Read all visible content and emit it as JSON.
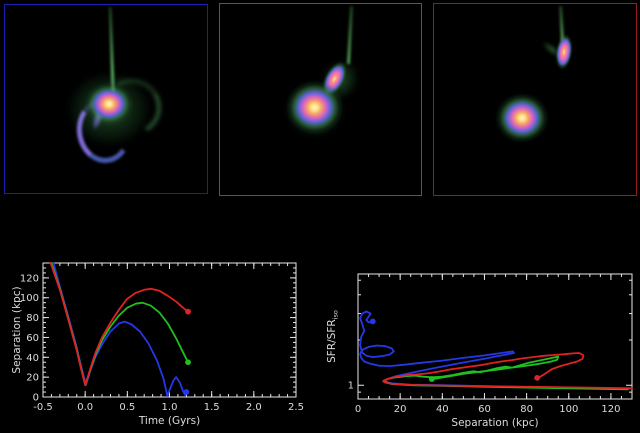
{
  "figure": {
    "background": "#000000",
    "description": "Galaxy merger simulation: three snapshot panels and two plots"
  },
  "snapshots": [
    {
      "border_color": "#1d1db0",
      "description": "merged galaxy with tidal tail and spiral arm"
    },
    {
      "border_color": "#257a25",
      "description": "galaxy pair, close companion with tidal tail"
    },
    {
      "border_color": "#9b1b1b",
      "description": "galaxy pair, distant companion with tidal tail"
    }
  ],
  "colors": {
    "series_red": "#e02222",
    "series_green": "#1fbf1f",
    "series_blue": "#2438e6",
    "axis": "#e8e8e8",
    "tick_text": "#dcdcdc",
    "galaxy_core": "#fff0b8",
    "galaxy_inner_ring": "#f2a068",
    "galaxy_pink_ring": "#de64bc",
    "galaxy_blue_ring": "#5866d8",
    "galaxy_halo": "#2f8a42",
    "tidal_tail": "#57b468"
  },
  "chart_data": [
    {
      "type": "line",
      "title": "",
      "xlabel": "Time (Gyrs)",
      "ylabel": "Separation (kpc)",
      "ylabel_sub": "",
      "legend": "none",
      "grid": false,
      "axes": {
        "xlim": [
          -0.5,
          2.5
        ],
        "ylim": [
          0,
          135
        ],
        "ylog": false,
        "xticks": {
          "values": [
            -0.5,
            0.0,
            0.5,
            1.0,
            1.5,
            2.0,
            2.5
          ],
          "labels": [
            "-0.5",
            "0.0",
            "0.5",
            "1.0",
            "1.5",
            "2.0",
            "2.5"
          ]
        },
        "yticks": {
          "values": [
            0,
            20,
            40,
            60,
            80,
            100,
            120
          ],
          "labels": [
            "0",
            "20",
            "40",
            "60",
            "80",
            "100",
            "120"
          ]
        },
        "xminor_step": 0.1,
        "yminor_step": 5
      },
      "series": [
        {
          "name": "blue-orbit",
          "color": "#2438e6",
          "end_dot": true,
          "points": [
            [
              -0.375,
              135
            ],
            [
              -0.3,
              111
            ],
            [
              -0.2,
              81
            ],
            [
              -0.1,
              50
            ],
            [
              -0.05,
              32
            ],
            [
              0.01,
              12
            ],
            [
              0.06,
              26
            ],
            [
              0.12,
              40
            ],
            [
              0.2,
              53
            ],
            [
              0.3,
              66
            ],
            [
              0.4,
              74
            ],
            [
              0.47,
              76
            ],
            [
              0.55,
              73
            ],
            [
              0.65,
              66
            ],
            [
              0.75,
              54
            ],
            [
              0.85,
              37
            ],
            [
              0.93,
              18
            ],
            [
              0.975,
              1
            ],
            [
              1.01,
              9
            ],
            [
              1.05,
              17
            ],
            [
              1.08,
              20
            ],
            [
              1.12,
              15
            ],
            [
              1.16,
              6
            ],
            [
              1.185,
              2
            ],
            [
              1.2,
              5
            ]
          ]
        },
        {
          "name": "green-orbit",
          "color": "#1fbf1f",
          "end_dot": true,
          "points": [
            [
              -0.4,
              135
            ],
            [
              -0.3,
              109
            ],
            [
              -0.2,
              79
            ],
            [
              -0.1,
              48
            ],
            [
              -0.05,
              30
            ],
            [
              0.0,
              12
            ],
            [
              0.06,
              27
            ],
            [
              0.12,
              42
            ],
            [
              0.2,
              57
            ],
            [
              0.3,
              71
            ],
            [
              0.4,
              82
            ],
            [
              0.5,
              90
            ],
            [
              0.6,
              94
            ],
            [
              0.68,
              95
            ],
            [
              0.78,
              92
            ],
            [
              0.88,
              85
            ],
            [
              0.98,
              74
            ],
            [
              1.08,
              59
            ],
            [
              1.16,
              45
            ],
            [
              1.22,
              35
            ]
          ]
        },
        {
          "name": "red-orbit",
          "color": "#e02222",
          "end_dot": true,
          "points": [
            [
              -0.41,
              135
            ],
            [
              -0.3,
              108
            ],
            [
              -0.2,
              78
            ],
            [
              -0.1,
              47
            ],
            [
              -0.05,
              29
            ],
            [
              0.0,
              12
            ],
            [
              0.06,
              28
            ],
            [
              0.12,
              44
            ],
            [
              0.2,
              60
            ],
            [
              0.3,
              75
            ],
            [
              0.4,
              88
            ],
            [
              0.5,
              99
            ],
            [
              0.6,
              105
            ],
            [
              0.7,
              108
            ],
            [
              0.78,
              109
            ],
            [
              0.88,
              107
            ],
            [
              0.98,
              102
            ],
            [
              1.08,
              96
            ],
            [
              1.16,
              90
            ],
            [
              1.22,
              86
            ]
          ]
        }
      ]
    },
    {
      "type": "line",
      "title": "",
      "xlabel": "Separation (kpc)",
      "ylabel": "SFR/SFR",
      "ylabel_sub": "iso",
      "legend": "none",
      "grid": false,
      "axes": {
        "xlim": [
          0,
          130
        ],
        "ylim": [
          0.81,
          5.5
        ],
        "ylog": true,
        "xticks": {
          "values": [
            0,
            20,
            40,
            60,
            80,
            100,
            120
          ],
          "labels": [
            "0",
            "20",
            "40",
            "60",
            "80",
            "100",
            "120"
          ]
        },
        "yticks": {
          "values": [
            1
          ],
          "labels": [
            "1"
          ]
        },
        "xminor_step": 5,
        "yminor_values": [
          0.9,
          2,
          3,
          4,
          5
        ]
      },
      "series": [
        {
          "name": "blue-track",
          "color": "#2438e6",
          "end_dot": true,
          "points": [
            [
              130,
              0.95
            ],
            [
              100,
              0.965
            ],
            [
              70,
              0.98
            ],
            [
              40,
              1.0
            ],
            [
              25,
              1.01
            ],
            [
              16,
              1.03
            ],
            [
              12.5,
              1.06
            ],
            [
              14,
              1.1
            ],
            [
              18,
              1.15
            ],
            [
              24,
              1.2
            ],
            [
              30,
              1.25
            ],
            [
              36,
              1.3
            ],
            [
              42,
              1.35
            ],
            [
              48,
              1.4
            ],
            [
              54,
              1.45
            ],
            [
              60,
              1.5
            ],
            [
              66,
              1.56
            ],
            [
              71,
              1.61
            ],
            [
              74,
              1.64
            ],
            [
              73.5,
              1.68
            ],
            [
              68,
              1.64
            ],
            [
              60,
              1.58
            ],
            [
              50,
              1.52
            ],
            [
              40,
              1.46
            ],
            [
              30,
              1.41
            ],
            [
              22,
              1.37
            ],
            [
              15,
              1.34
            ],
            [
              10,
              1.35
            ],
            [
              6,
              1.39
            ],
            [
              3,
              1.44
            ],
            [
              1.5,
              1.52
            ],
            [
              1,
              1.62
            ],
            [
              2,
              1.72
            ],
            [
              5,
              1.8
            ],
            [
              9,
              1.84
            ],
            [
              13,
              1.82
            ],
            [
              16,
              1.76
            ],
            [
              17,
              1.68
            ],
            [
              15,
              1.6
            ],
            [
              11,
              1.56
            ],
            [
              7,
              1.54
            ],
            [
              4,
              1.57
            ],
            [
              2,
              1.65
            ],
            [
              1,
              1.85
            ],
            [
              1.5,
              2.1
            ],
            [
              3,
              2.3
            ],
            [
              2,
              2.55
            ],
            [
              1,
              2.8
            ],
            [
              2,
              3.0
            ],
            [
              4,
              3.1
            ],
            [
              6,
              3.0
            ],
            [
              5,
              2.85
            ],
            [
              4,
              2.72
            ],
            [
              5,
              2.62
            ],
            [
              7,
              2.66
            ]
          ]
        },
        {
          "name": "green-track",
          "color": "#1fbf1f",
          "end_dot": true,
          "points": [
            [
              128,
              0.94
            ],
            [
              100,
              0.955
            ],
            [
              70,
              0.97
            ],
            [
              40,
              0.99
            ],
            [
              25,
              1.0
            ],
            [
              16,
              1.02
            ],
            [
              12,
              1.06
            ],
            [
              14,
              1.1
            ],
            [
              18,
              1.13
            ],
            [
              23,
              1.15
            ],
            [
              27,
              1.16
            ],
            [
              31,
              1.14
            ],
            [
              35,
              1.13
            ],
            [
              40,
              1.14
            ],
            [
              45,
              1.17
            ],
            [
              50,
              1.21
            ],
            [
              55,
              1.24
            ],
            [
              58,
              1.22
            ],
            [
              62,
              1.26
            ],
            [
              66,
              1.3
            ],
            [
              70,
              1.33
            ],
            [
              73,
              1.31
            ],
            [
              77,
              1.36
            ],
            [
              81,
              1.41
            ],
            [
              85,
              1.45
            ],
            [
              89,
              1.49
            ],
            [
              93,
              1.53
            ],
            [
              95,
              1.55
            ],
            [
              94.5,
              1.48
            ],
            [
              91,
              1.43
            ],
            [
              86,
              1.39
            ],
            [
              80,
              1.35
            ],
            [
              73,
              1.31
            ],
            [
              66,
              1.27
            ],
            [
              58,
              1.23
            ],
            [
              50,
              1.19
            ],
            [
              44,
              1.15
            ],
            [
              39,
              1.12
            ],
            [
              36,
              1.1
            ],
            [
              35,
              1.1
            ]
          ]
        },
        {
          "name": "red-track",
          "color": "#e02222",
          "end_dot": true,
          "points": [
            [
              130,
              0.955
            ],
            [
              110,
              0.965
            ],
            [
              85,
              0.975
            ],
            [
              60,
              0.985
            ],
            [
              40,
              0.995
            ],
            [
              25,
              1.005
            ],
            [
              17,
              1.02
            ],
            [
              13,
              1.04
            ],
            [
              12,
              1.07
            ],
            [
              14,
              1.1
            ],
            [
              17,
              1.13
            ],
            [
              20,
              1.15
            ],
            [
              24,
              1.17
            ],
            [
              28,
              1.18
            ],
            [
              33,
              1.2
            ],
            [
              38,
              1.23
            ],
            [
              43,
              1.27
            ],
            [
              48,
              1.3
            ],
            [
              53,
              1.33
            ],
            [
              58,
              1.36
            ],
            [
              63,
              1.4
            ],
            [
              68,
              1.44
            ],
            [
              73,
              1.47
            ],
            [
              78,
              1.51
            ],
            [
              83,
              1.54
            ],
            [
              88,
              1.57
            ],
            [
              93,
              1.59
            ],
            [
              98,
              1.61
            ],
            [
              102,
              1.63
            ],
            [
              105,
              1.64
            ],
            [
              107,
              1.58
            ],
            [
              106.5,
              1.5
            ],
            [
              104,
              1.44
            ],
            [
              100,
              1.39
            ],
            [
              96,
              1.34
            ],
            [
              92,
              1.28
            ],
            [
              89,
              1.2
            ],
            [
              86.5,
              1.14
            ],
            [
              85,
              1.12
            ]
          ]
        }
      ]
    }
  ]
}
